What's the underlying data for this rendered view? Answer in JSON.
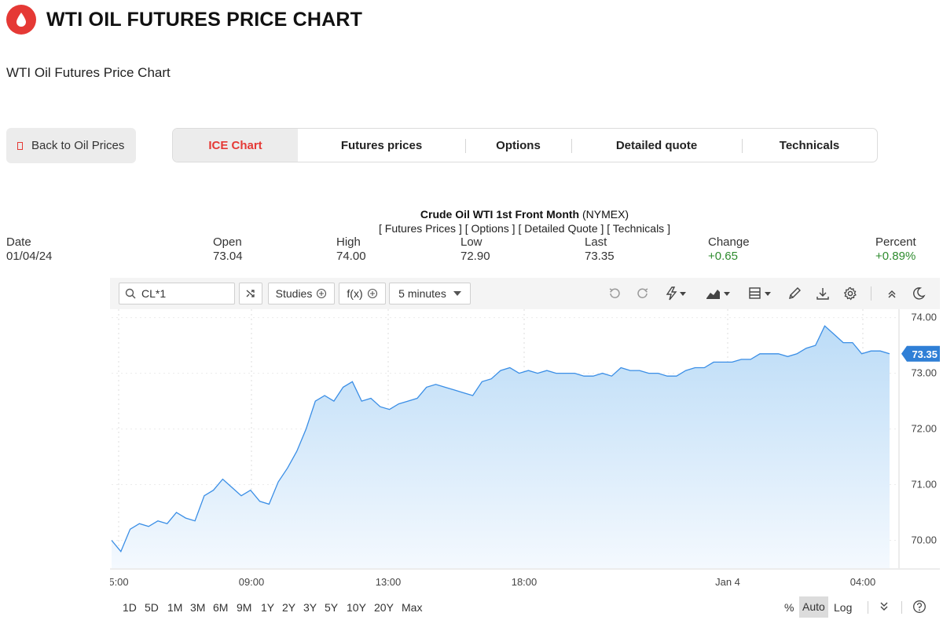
{
  "header": {
    "title": "WTI OIL FUTURES PRICE CHART",
    "subtitle": "WTI Oil Futures Price Chart"
  },
  "nav": {
    "back_label": "Back to Oil Prices",
    "tabs": [
      {
        "label": "ICE Chart",
        "active": true
      },
      {
        "label": "Futures prices"
      },
      {
        "label": "Options"
      },
      {
        "label": "Detailed quote"
      },
      {
        "label": "Technicals"
      }
    ]
  },
  "quote": {
    "name": "Crude Oil WTI 1st Front Month",
    "exchange": "(NYMEX)",
    "links": [
      "[ Futures Prices ]",
      "[ Options ]",
      "[ Detailed Quote ]",
      "[ Technicals ]"
    ],
    "stats": [
      {
        "label": "Date",
        "value": "01/04/24"
      },
      {
        "label": "Open",
        "value": "73.04"
      },
      {
        "label": "High",
        "value": "74.00"
      },
      {
        "label": "Low",
        "value": "72.90"
      },
      {
        "label": "Last",
        "value": "73.35"
      },
      {
        "label": "Change",
        "value": "+0.65"
      },
      {
        "label": "Percent",
        "value": "+0.89%"
      }
    ]
  },
  "toolbar": {
    "symbol": "CL*1",
    "studies_label": "Studies",
    "fx_label": "f(x)",
    "interval_label": "5 minutes"
  },
  "bottom": {
    "ranges": [
      "1D",
      "5D",
      "1M",
      "3M",
      "6M",
      "9M",
      "1Y",
      "2Y",
      "3Y",
      "5Y",
      "10Y",
      "20Y",
      "Max"
    ],
    "scale": [
      "%",
      "Auto",
      "Log"
    ]
  },
  "colors": {
    "accent": "#e53935",
    "line": "#3a8ee6",
    "up": "#2e8b2e",
    "last_badge": "#2f7fd6"
  },
  "chart_data": {
    "type": "area",
    "series": [
      {
        "values": [
          70.0,
          69.8,
          70.2,
          70.3,
          70.25,
          70.35,
          70.3,
          70.5,
          70.4,
          70.35,
          70.8,
          70.9,
          71.1,
          70.95,
          70.8,
          70.9,
          70.7,
          70.65,
          71.05,
          71.3,
          71.6,
          72.0,
          72.5,
          72.6,
          72.5,
          72.75,
          72.85,
          72.5,
          72.55,
          72.4,
          72.35,
          72.45,
          72.5,
          72.55,
          72.75,
          72.8,
          72.75,
          72.7,
          72.65,
          72.6,
          72.85,
          72.9,
          73.05,
          73.1,
          73.0,
          73.05,
          73.0,
          73.05,
          73.0,
          73.0,
          73.0,
          72.95,
          72.95,
          73.0,
          72.95,
          73.1,
          73.05,
          73.05,
          73.0,
          73.0,
          72.95,
          72.95,
          73.05,
          73.1,
          73.1,
          73.2,
          73.2,
          73.2,
          73.25,
          73.25,
          73.35,
          73.35,
          73.35,
          73.3,
          73.35,
          73.45,
          73.5,
          73.85,
          73.7,
          73.55,
          73.55,
          73.35,
          73.4,
          73.4,
          73.35
        ]
      }
    ],
    "x_ticks": [
      "5:00",
      "09:00",
      "13:00",
      "18:00",
      "Jan 4",
      "04:00"
    ],
    "y_ticks": [
      "70.00",
      "71.00",
      "72.00",
      "73.00",
      "74.00"
    ],
    "ylim": [
      69.5,
      74.15
    ],
    "last_value": "73.35",
    "grid": true
  }
}
